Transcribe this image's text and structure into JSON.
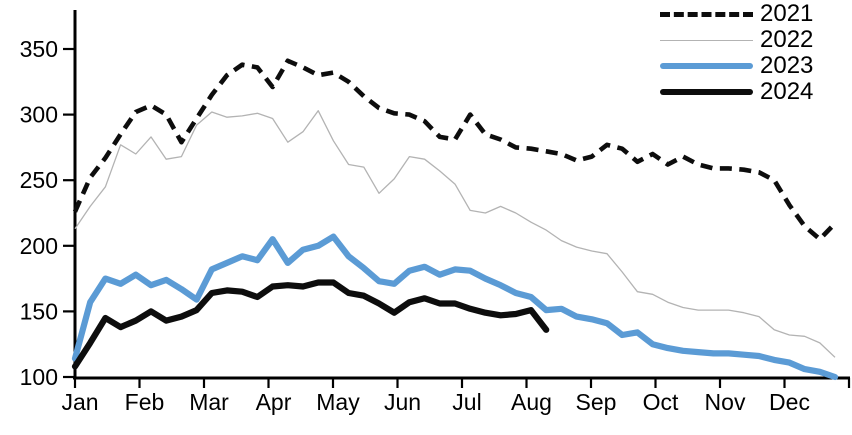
{
  "chart_data": {
    "type": "line",
    "title": "",
    "xlabel": "",
    "ylabel": "",
    "grid": false,
    "legend_position": "top-right",
    "x_axis": {
      "tick_labels": [
        "Jan",
        "Feb",
        "Mar",
        "Apr",
        "May",
        "Jun",
        "Jul",
        "Aug",
        "Sep",
        "Oct",
        "Nov",
        "Dec"
      ]
    },
    "y_axis": {
      "ticks": [
        100,
        150,
        200,
        250,
        300,
        350
      ],
      "min": 100,
      "max": 375
    },
    "series": [
      {
        "name": "2021",
        "color": "#0d0d0d",
        "line_style": "dashed",
        "line_width": 4.6,
        "values": [
          226,
          252,
          267,
          285,
          302,
          307,
          300,
          279,
          297,
          315,
          330,
          338,
          336,
          321,
          341,
          336,
          330,
          332,
          325,
          314,
          305,
          301,
          300,
          295,
          283,
          281,
          300,
          285,
          281,
          275,
          274,
          272,
          270,
          265,
          268,
          277,
          274,
          264,
          270,
          262,
          268,
          262,
          259,
          259,
          258,
          256,
          250,
          231,
          215,
          205,
          217
        ]
      },
      {
        "name": "2022",
        "color": "#b3b3b3",
        "line_style": "solid",
        "line_width": 1.3,
        "values": [
          213,
          230,
          245,
          277,
          270,
          283,
          266,
          268,
          292,
          302,
          298,
          299,
          301,
          297,
          279,
          287,
          303,
          280,
          262,
          260,
          240,
          251,
          268,
          266,
          257,
          247,
          227,
          225,
          230,
          225,
          218,
          212,
          204,
          199,
          196,
          194,
          180,
          165,
          163,
          157,
          153,
          151,
          151,
          151,
          149,
          146,
          136,
          132,
          131,
          126,
          115
        ]
      },
      {
        "name": "2023",
        "color": "#5b9bd5",
        "line_style": "solid",
        "line_width": 6.2,
        "values": [
          114,
          157,
          175,
          171,
          178,
          170,
          174,
          167,
          159,
          182,
          187,
          192,
          189,
          205,
          187,
          197,
          200,
          207,
          192,
          183,
          173,
          171,
          181,
          184,
          178,
          182,
          181,
          175,
          170,
          164,
          161,
          151,
          152,
          146,
          144,
          141,
          132,
          134,
          125,
          122,
          120,
          119,
          118,
          118,
          117,
          116,
          113,
          111,
          106,
          104,
          100
        ]
      },
      {
        "name": "2024",
        "color": "#0d0d0d",
        "line_style": "solid",
        "line_width": 6.2,
        "values": [
          108,
          126,
          145,
          138,
          143,
          150,
          143,
          146,
          151,
          164,
          166,
          165,
          161,
          169,
          170,
          169,
          172,
          172,
          164,
          162,
          156,
          149,
          157,
          160,
          156,
          156,
          152,
          149,
          147,
          148,
          151,
          136
        ]
      }
    ]
  }
}
